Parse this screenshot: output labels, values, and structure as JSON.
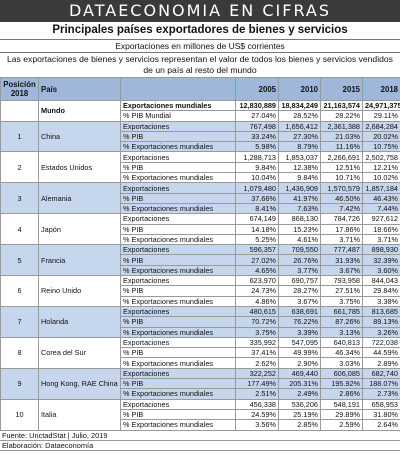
{
  "header": {
    "title": "DATAECONOMIA EN CIFRAS",
    "subtitle": "Principales países exportadores de bienes y servicios",
    "units": "Exportaciones en millones de US$ corrientes",
    "description": "Las exportaciones de bienes y servicios representan el valor de todos los bienes y servicios vendidos de un país al resto del mundo"
  },
  "table": {
    "columns": {
      "position": "Posición 2018",
      "country": "País",
      "years": [
        "2005",
        "2010",
        "2015",
        "2018"
      ]
    },
    "world": {
      "name": "Mundo",
      "rows": [
        {
          "label": "Exportaciones mundiales",
          "values": [
            "12,830,889",
            "18,834,249",
            "21,163,574",
            "24,971,375"
          ]
        },
        {
          "label": "% PIB Mundial",
          "values": [
            "27.04%",
            "28.52%",
            "28.22%",
            "29.11%"
          ]
        }
      ]
    },
    "countries": [
      {
        "rank": "1",
        "name": "China",
        "rows": [
          {
            "label": "Exportaciones",
            "values": [
              "767,498",
              "1,656,412",
              "2,361,388",
              "2,684,284"
            ]
          },
          {
            "label": "% PIB",
            "values": [
              "33.24%",
              "27.30%",
              "21.03%",
              "20.02%"
            ]
          },
          {
            "label": "% Exportaciones mundiales",
            "values": [
              "5.98%",
              "8.79%",
              "11.16%",
              "10.75%"
            ]
          }
        ]
      },
      {
        "rank": "2",
        "name": "Estados Unidos",
        "rows": [
          {
            "label": "Exportaciones",
            "values": [
              "1,288,713",
              "1,853,037",
              "2,266,691",
              "2,502,758"
            ]
          },
          {
            "label": "% PIB",
            "values": [
              "9.84%",
              "12.38%",
              "12.51%",
              "12.21%"
            ]
          },
          {
            "label": "% Exportaciones mundiales",
            "values": [
              "10.04%",
              "9.84%",
              "10.71%",
              "10.02%"
            ]
          }
        ]
      },
      {
        "rank": "3",
        "name": "Alemania",
        "rows": [
          {
            "label": "Exportaciones",
            "values": [
              "1,079,480",
              "1,436,909",
              "1,570,579",
              "1,857,184"
            ]
          },
          {
            "label": "% PIB",
            "values": [
              "37.66%",
              "41.97%",
              "46.50%",
              "46.43%"
            ]
          },
          {
            "label": "% Exportaciones mundiales",
            "values": [
              "8.41%",
              "7.63%",
              "7.42%",
              "7.44%"
            ]
          }
        ]
      },
      {
        "rank": "4",
        "name": "Japón",
        "rows": [
          {
            "label": "Exportaciones",
            "values": [
              "674,149",
              "868,130",
              "784,726",
              "927,612"
            ]
          },
          {
            "label": "% PIB",
            "values": [
              "14.18%",
              "15.23%",
              "17.86%",
              "18.66%"
            ]
          },
          {
            "label": "% Exportaciones mundiales",
            "values": [
              "5.25%",
              "4.61%",
              "3.71%",
              "3.71%"
            ]
          }
        ]
      },
      {
        "rank": "5",
        "name": "Francia",
        "rows": [
          {
            "label": "Exportaciones",
            "values": [
              "596,357",
              "709,550",
              "777,487",
              "898,930"
            ]
          },
          {
            "label": "% PIB",
            "values": [
              "27.02%",
              "26.76%",
              "31.93%",
              "32.39%"
            ]
          },
          {
            "label": "% Exportaciones mundiales",
            "values": [
              "4.65%",
              "3.77%",
              "3.67%",
              "3.60%"
            ]
          }
        ]
      },
      {
        "rank": "6",
        "name": "Reino Unido",
        "rows": [
          {
            "label": "Exportaciones",
            "values": [
              "623,970",
              "690,757",
              "793,958",
              "844,043"
            ]
          },
          {
            "label": "% PIB",
            "values": [
              "24.73%",
              "28.27%",
              "27.51%",
              "29.84%"
            ]
          },
          {
            "label": "% Exportaciones mundiales",
            "values": [
              "4.86%",
              "3.67%",
              "3.75%",
              "3.38%"
            ]
          }
        ]
      },
      {
        "rank": "7",
        "name": "Holanda",
        "rows": [
          {
            "label": "Exportaciones",
            "values": [
              "480,615",
              "638,691",
              "661,785",
              "813,685"
            ]
          },
          {
            "label": "% PIB",
            "values": [
              "70.72%",
              "76.22%",
              "87.26%",
              "89.13%"
            ]
          },
          {
            "label": "% Exportaciones mundiales",
            "values": [
              "3.75%",
              "3.39%",
              "3.13%",
              "3.26%"
            ]
          }
        ]
      },
      {
        "rank": "8",
        "name": "Corea del Sur",
        "rows": [
          {
            "label": "Exportaciones",
            "values": [
              "335,992",
              "547,095",
              "640,813",
              "722,038"
            ]
          },
          {
            "label": "% PIB",
            "values": [
              "37.41%",
              "49.99%",
              "46.34%",
              "44.59%"
            ]
          },
          {
            "label": "% Exportaciones mundiales",
            "values": [
              "2.62%",
              "2.90%",
              "3.03%",
              "2.89%"
            ]
          }
        ]
      },
      {
        "rank": "9",
        "name": "Hong Kong, RAE China",
        "rows": [
          {
            "label": "Exportaciones",
            "values": [
              "322,252",
              "469,440",
              "606,085",
              "682,740"
            ]
          },
          {
            "label": "% PIB",
            "values": [
              "177.49%",
              "205.31%",
              "195.92%",
              "188.07%"
            ]
          },
          {
            "label": "% Exportaciones mundiales",
            "values": [
              "2.51%",
              "2.49%",
              "2.86%",
              "2.73%"
            ]
          }
        ]
      },
      {
        "rank": "10",
        "name": "Italia",
        "rows": [
          {
            "label": "Exportaciones",
            "values": [
              "456,338",
              "536,206",
              "548,191",
              "658,953"
            ]
          },
          {
            "label": "% PIB",
            "values": [
              "24.59%",
              "25.19%",
              "29.89%",
              "31.80%"
            ]
          },
          {
            "label": "% Exportaciones mundiales",
            "values": [
              "3.56%",
              "2.85%",
              "2.59%",
              "2.64%"
            ]
          }
        ]
      }
    ]
  },
  "footer": {
    "source": "Fuente: UnctadStat | Julio, 2019",
    "credit": "Elaboración: Dataeconomía"
  }
}
